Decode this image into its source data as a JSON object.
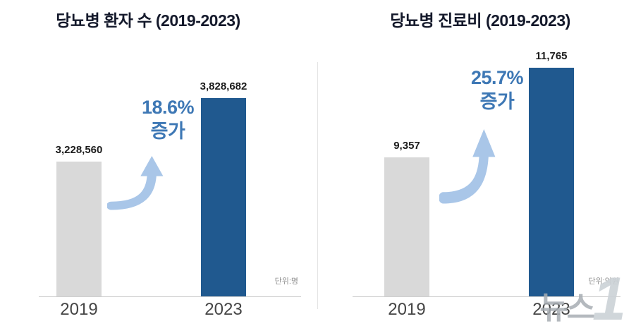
{
  "chart_data": [
    {
      "type": "bar",
      "title": "당뇨병 환자 수 (2019-2023)",
      "categories": [
        "2019",
        "2023"
      ],
      "values": [
        3228560,
        3828682
      ],
      "value_labels": [
        "3,228,560",
        "3,828,682"
      ],
      "increase_pct": "18.6%",
      "increase_word": "증가",
      "annotation": "18.6% 증가",
      "unit": "단위:명",
      "ylim": [
        1950000,
        3950000
      ],
      "grid": false,
      "legend": "none",
      "bar_colors": [
        "#d9d9d9",
        "#20598f"
      ]
    },
    {
      "type": "bar",
      "title": "당뇨병 진료비 (2019-2023)",
      "categories": [
        "2019",
        "2023"
      ],
      "values": [
        9357,
        11765
      ],
      "value_labels": [
        "9,357",
        "11,765"
      ],
      "increase_pct": "25.7%",
      "increase_word": "증가",
      "annotation": "25.7% 증가",
      "unit": "단위:억원",
      "ylim": [
        5600,
        11860
      ],
      "grid": false,
      "legend": "none",
      "bar_colors": [
        "#d9d9d9",
        "#20598f"
      ]
    }
  ],
  "colors": {
    "bar_2019": "#d9d9d9",
    "bar_2023": "#20598f",
    "increase_text": "#3e78b5",
    "arrow": "#a9c6e8"
  },
  "watermark": {
    "text": "뉴스",
    "numeral": "1"
  }
}
